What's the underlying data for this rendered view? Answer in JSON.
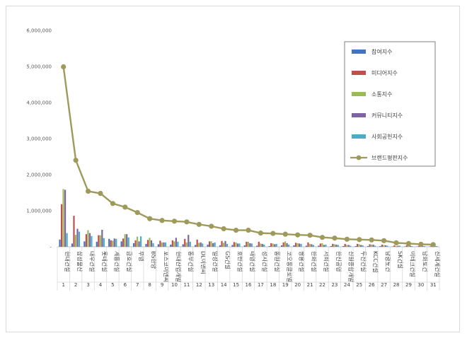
{
  "chart_data": {
    "type": "bar",
    "title": "",
    "xlabel": "",
    "ylabel": "",
    "ylim": [
      0,
      6000000
    ],
    "yticks": [
      "-",
      "1,000,000",
      "2,000,000",
      "3,000,000",
      "4,000,000",
      "5,000,000",
      "6,000,000"
    ],
    "grid": false,
    "legend_position": "top-right",
    "categories": [
      "현대건설",
      "삼성물산",
      "대우건설",
      "롯데건설",
      "계룡건설",
      "금호건설",
      "부영",
      "BS한양",
      "포스코이앤씨",
      "현대산업개발",
      "동부건설",
      "DL이앤씨",
      "일성건설",
      "GS건설",
      "호반건설",
      "태영건설",
      "성지건설",
      "동원건설",
      "코오롱글로벌",
      "쌍용건설",
      "한화건설",
      "서희건설",
      "한신공영",
      "신원종합개발",
      "두산건설",
      "KCC건설",
      "남광토건",
      "SK건설",
      "이테크건설",
      "남화토건",
      "신세계건설"
    ],
    "ranks": [
      "1",
      "2",
      "3",
      "4",
      "5",
      "6",
      "7",
      "8",
      "9",
      "10",
      "11",
      "12",
      "13",
      "14",
      "15",
      "16",
      "17",
      "18",
      "19",
      "20",
      "21",
      "22",
      "23",
      "24",
      "25",
      "26",
      "27",
      "28",
      "29",
      "30",
      "31"
    ],
    "series": [
      {
        "name": "참여지수",
        "kind": "bar",
        "color": "#4472c4",
        "values": [
          200000,
          90000,
          150000,
          140000,
          220000,
          150000,
          100000,
          80000,
          70000,
          60000,
          70000,
          50000,
          60000,
          40000,
          50000,
          40000,
          30000,
          20000,
          40000,
          40000,
          30000,
          30000,
          20000,
          20000,
          20000,
          20000,
          20000,
          10000,
          10000,
          10000,
          10000
        ]
      },
      {
        "name": "미디어지수",
        "kind": "bar",
        "color": "#c0504d",
        "values": [
          1180000,
          860000,
          350000,
          320000,
          180000,
          230000,
          180000,
          190000,
          170000,
          180000,
          220000,
          200000,
          150000,
          160000,
          130000,
          140000,
          140000,
          100000,
          120000,
          110000,
          120000,
          90000,
          80000,
          80000,
          80000,
          70000,
          60000,
          40000,
          40000,
          30000,
          40000
        ]
      },
      {
        "name": "소통지수",
        "kind": "bar",
        "color": "#9bbb59",
        "values": [
          1600000,
          330000,
          460000,
          320000,
          170000,
          350000,
          280000,
          250000,
          120000,
          150000,
          120000,
          110000,
          150000,
          110000,
          120000,
          140000,
          90000,
          90000,
          150000,
          100000,
          80000,
          100000,
          70000,
          50000,
          70000,
          60000,
          50000,
          20000,
          30000,
          30000,
          20000
        ]
      },
      {
        "name": "커뮤니티지수",
        "kind": "bar",
        "color": "#8064a2",
        "values": [
          1580000,
          500000,
          380000,
          470000,
          230000,
          350000,
          150000,
          180000,
          120000,
          250000,
          330000,
          120000,
          100000,
          160000,
          90000,
          100000,
          80000,
          70000,
          100000,
          90000,
          70000,
          50000,
          60000,
          50000,
          50000,
          60000,
          40000,
          30000,
          30000,
          20000,
          20000
        ]
      },
      {
        "name": "사회공헌지수",
        "kind": "bar",
        "color": "#4bacc6",
        "values": [
          380000,
          420000,
          300000,
          240000,
          220000,
          260000,
          290000,
          100000,
          120000,
          140000,
          140000,
          90000,
          120000,
          80000,
          90000,
          90000,
          60000,
          80000,
          60000,
          80000,
          50000,
          60000,
          50000,
          30000,
          40000,
          30000,
          30000,
          30000,
          20000,
          20000,
          20000
        ]
      },
      {
        "name": "브랜드평판지수",
        "kind": "line",
        "color": "#9e9a5b",
        "values": [
          4990000,
          2400000,
          1540000,
          1480000,
          1200000,
          1100000,
          950000,
          780000,
          730000,
          710000,
          690000,
          620000,
          570000,
          500000,
          460000,
          460000,
          380000,
          370000,
          350000,
          330000,
          320000,
          260000,
          240000,
          210000,
          200000,
          190000,
          170000,
          110000,
          90000,
          70000,
          60000
        ]
      }
    ]
  }
}
